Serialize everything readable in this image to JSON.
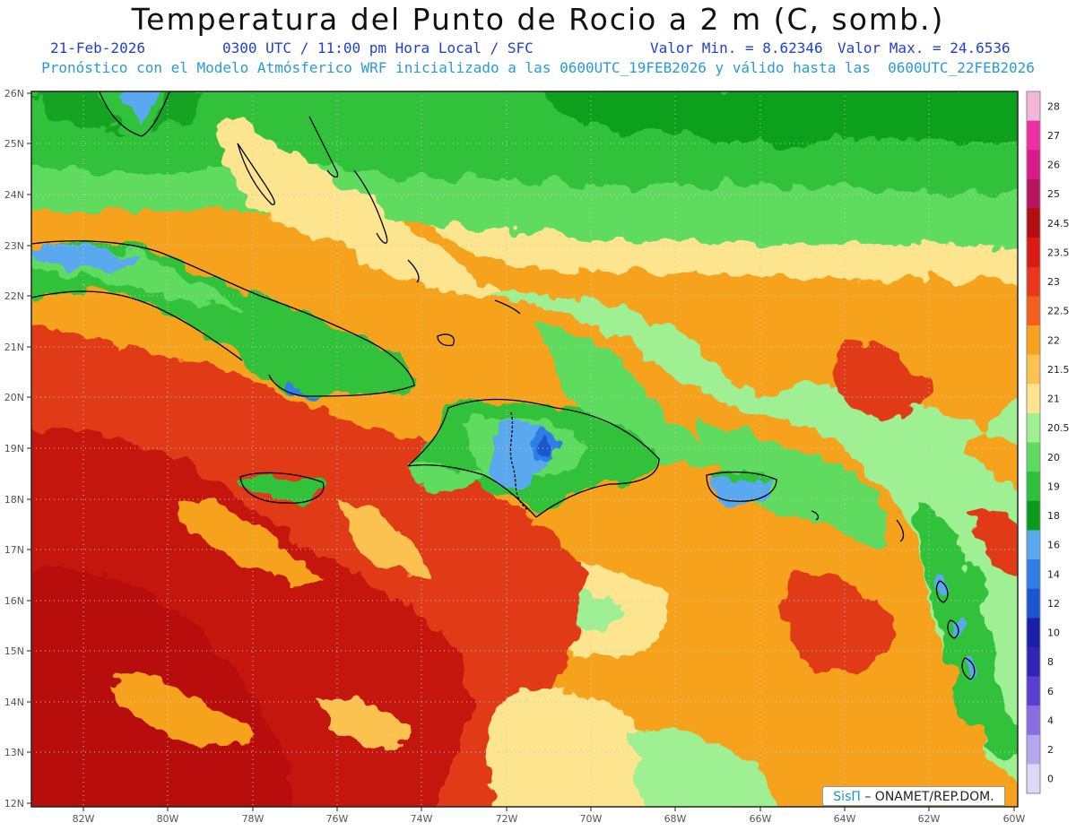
{
  "title": "Temperatura del Punto de Rocio a 2 m (C, somb.)",
  "date": "21-Feb-2026",
  "time": "0300 UTC / 11:00 pm Hora Local / SFC",
  "valmin": "Valor Min. = 8.62346",
  "valmax": "Valor Max. = 24.6536",
  "subtitle2": "Pronóstico con el Modelo Atmósferico WRF inicializado a las 0600UTC_19FEB2026 y válido hasta las  0600UTC_22FEB2026",
  "credit_brand": "SisΠ",
  "credit_text": " – ONAMET/REP.DOM.",
  "lat_labels": [
    "26N",
    "25N",
    "24N",
    "23N",
    "22N",
    "21N",
    "20N",
    "19N",
    "18N",
    "17N",
    "16N",
    "15N",
    "14N",
    "13N",
    "12N"
  ],
  "lon_labels": [
    "82W",
    "80W",
    "78W",
    "76W",
    "74W",
    "72W",
    "70W",
    "68W",
    "66W",
    "64W",
    "62W",
    "60W"
  ],
  "colorbar": [
    {
      "label": "28",
      "color": "#f2b6d8"
    },
    {
      "label": "27",
      "color": "#ee2fa3"
    },
    {
      "label": "26",
      "color": "#d81b8a"
    },
    {
      "label": "25",
      "color": "#b8145e"
    },
    {
      "label": "24.5",
      "color": "#b30d0d"
    },
    {
      "label": "23.5",
      "color": "#d91c11"
    },
    {
      "label": "23",
      "color": "#e8371a"
    },
    {
      "label": "22.5",
      "color": "#f4601c"
    },
    {
      "label": "22",
      "color": "#f7a21c"
    },
    {
      "label": "21.5",
      "color": "#fbc24f"
    },
    {
      "label": "21",
      "color": "#fce58e"
    },
    {
      "label": "20.5",
      "color": "#9ef092"
    },
    {
      "label": "20",
      "color": "#5edb5e"
    },
    {
      "label": "19",
      "color": "#30c13a"
    },
    {
      "label": "18",
      "color": "#0c9a1a"
    },
    {
      "label": "16",
      "color": "#5aa9ee"
    },
    {
      "label": "14",
      "color": "#2f7ee8"
    },
    {
      "label": "12",
      "color": "#1c56cf"
    },
    {
      "label": "10",
      "color": "#1a1faa"
    },
    {
      "label": "8",
      "color": "#3324b8"
    },
    {
      "label": "6",
      "color": "#5c3fd0"
    },
    {
      "label": "4",
      "color": "#8a6de0"
    },
    {
      "label": "2",
      "color": "#b6a6ee"
    },
    {
      "label": "0",
      "color": "#dcd8f6"
    }
  ],
  "map_colors": {
    "red_dark": "#c4140f",
    "red": "#e03a17",
    "orange": "#f6a21c",
    "orange_light": "#fbc24f",
    "yellow": "#fce58e",
    "green_light": "#9ef092",
    "green": "#5edb5e",
    "green_mid": "#30c13a",
    "green_dark": "#0c9a1a",
    "blue": "#5aa9ee",
    "blue_dark": "#1c56cf"
  }
}
